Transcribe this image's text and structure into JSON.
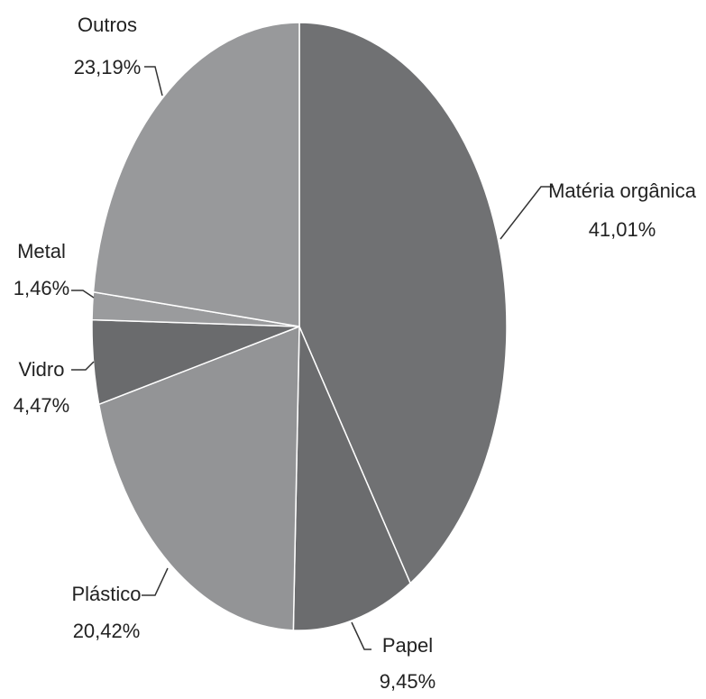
{
  "chart_data": {
    "type": "pie",
    "title": "",
    "slices": [
      {
        "name": "Matéria orgânica",
        "value": 41.01,
        "label": "41,01%",
        "color": "#707173"
      },
      {
        "name": "Papel",
        "value": 9.45,
        "label": "9,45%",
        "color": "#6b6c6e"
      },
      {
        "name": "Plástico",
        "value": 20.42,
        "label": "20,42%",
        "color": "#939496"
      },
      {
        "name": "Vidro",
        "value": 4.47,
        "label": "4,47%",
        "color": "#6a6b6d"
      },
      {
        "name": "Metal",
        "value": 1.46,
        "label": "1,46%",
        "color": "#9a9b9d"
      },
      {
        "name": "Outros",
        "value": 23.19,
        "label": "23,19%",
        "color": "#98999b"
      }
    ],
    "start_angle_deg": 0,
    "direction": "clockwise",
    "legend": "none",
    "slice_border_color": "#ffffff"
  }
}
